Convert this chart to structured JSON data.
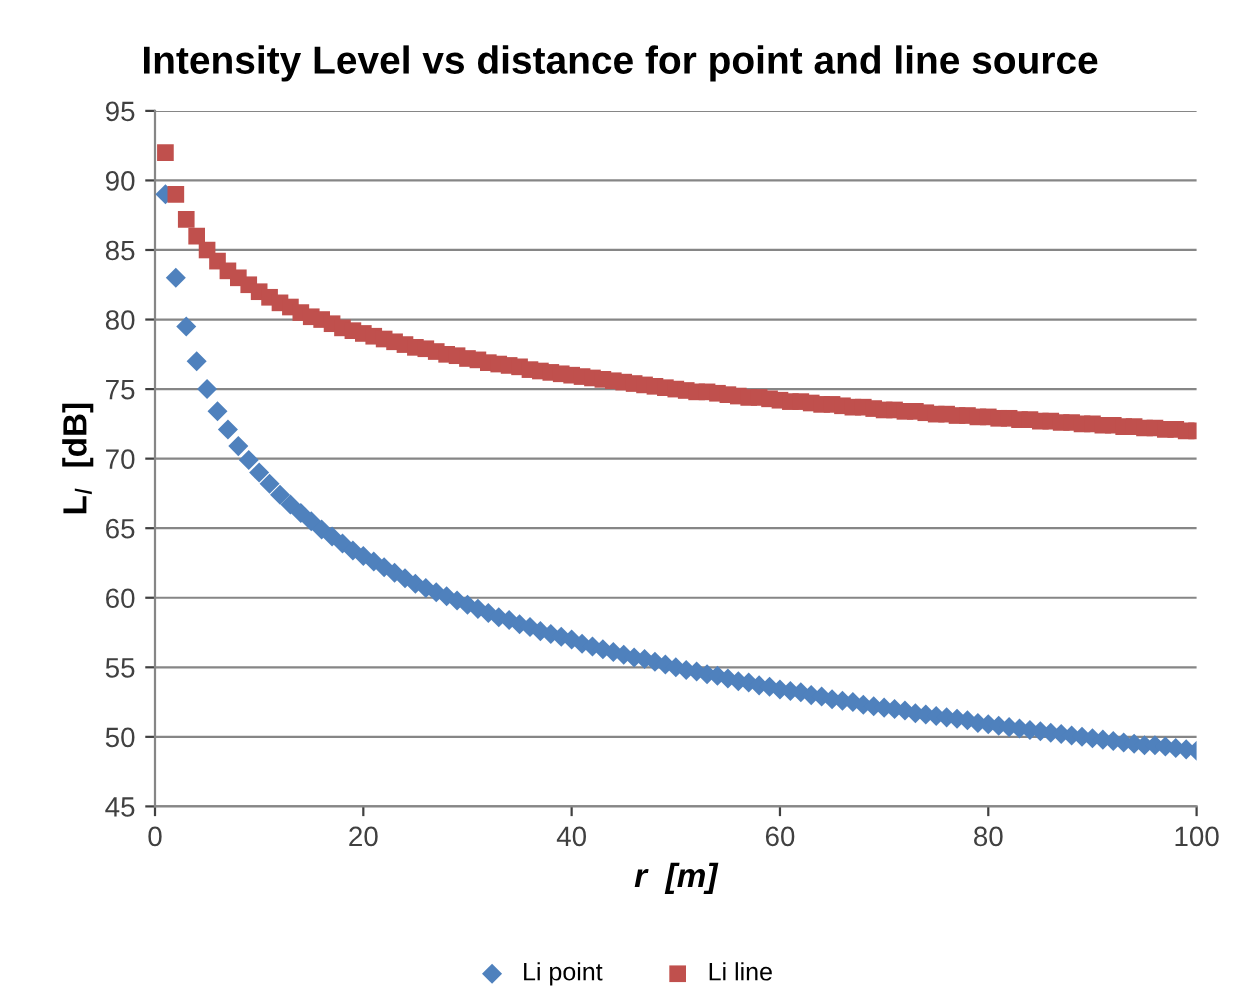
{
  "chart_data": {
    "type": "scatter",
    "title": "Intensity Level vs distance for point and line source",
    "xlabel": "r  [m]",
    "ylabel": "L$_{I}$  [dB]",
    "x": [
      1,
      2,
      3,
      4,
      5,
      6,
      7,
      8,
      9,
      10,
      11,
      12,
      13,
      14,
      15,
      16,
      17,
      18,
      19,
      20,
      21,
      22,
      23,
      24,
      25,
      26,
      27,
      28,
      29,
      30,
      31,
      32,
      33,
      34,
      35,
      36,
      37,
      38,
      39,
      40,
      41,
      42,
      43,
      44,
      45,
      46,
      47,
      48,
      49,
      50,
      51,
      52,
      53,
      54,
      55,
      56,
      57,
      58,
      59,
      60,
      61,
      62,
      63,
      64,
      65,
      66,
      67,
      68,
      69,
      70,
      71,
      72,
      73,
      74,
      75,
      76,
      77,
      78,
      79,
      80,
      81,
      82,
      83,
      84,
      85,
      86,
      87,
      88,
      89,
      90,
      91,
      92,
      93,
      94,
      95,
      96,
      97,
      98,
      99,
      100
    ],
    "series": [
      {
        "name": "Li point",
        "color": "#4f81bd",
        "marker": "diamond",
        "values": [
          89.0,
          83.0,
          79.5,
          77.0,
          75.0,
          73.4,
          72.1,
          70.9,
          69.9,
          69.0,
          68.2,
          67.4,
          66.7,
          66.1,
          65.5,
          64.9,
          64.4,
          63.9,
          63.4,
          63.0,
          62.6,
          62.2,
          61.8,
          61.4,
          61.0,
          60.7,
          60.4,
          60.1,
          59.8,
          59.5,
          59.2,
          58.9,
          58.6,
          58.4,
          58.1,
          57.9,
          57.6,
          57.4,
          57.2,
          57.0,
          56.7,
          56.5,
          56.3,
          56.1,
          55.9,
          55.7,
          55.6,
          55.4,
          55.2,
          55.0,
          54.8,
          54.7,
          54.5,
          54.4,
          54.2,
          54.0,
          53.9,
          53.7,
          53.6,
          53.4,
          53.3,
          53.2,
          53.0,
          52.9,
          52.7,
          52.6,
          52.5,
          52.3,
          52.2,
          52.1,
          52.0,
          51.9,
          51.7,
          51.6,
          51.5,
          51.4,
          51.3,
          51.2,
          51.0,
          50.9,
          50.8,
          50.7,
          50.6,
          50.5,
          50.4,
          50.3,
          50.2,
          50.1,
          50.0,
          49.9,
          49.8,
          49.7,
          49.6,
          49.5,
          49.4,
          49.4,
          49.3,
          49.2,
          49.1,
          49.0
        ]
      },
      {
        "name": "Li line",
        "color": "#c0504d",
        "marker": "square",
        "values": [
          92.0,
          89.0,
          87.2,
          86.0,
          85.0,
          84.2,
          83.5,
          83.0,
          82.5,
          82.0,
          81.6,
          81.2,
          80.9,
          80.5,
          80.2,
          80.0,
          79.7,
          79.4,
          79.2,
          79.0,
          78.8,
          78.6,
          78.4,
          78.2,
          78.0,
          77.9,
          77.7,
          77.5,
          77.4,
          77.2,
          77.1,
          76.9,
          76.8,
          76.7,
          76.6,
          76.4,
          76.3,
          76.2,
          76.1,
          76.0,
          75.9,
          75.8,
          75.7,
          75.6,
          75.5,
          75.4,
          75.3,
          75.2,
          75.1,
          75.0,
          74.9,
          74.8,
          74.8,
          74.7,
          74.6,
          74.5,
          74.4,
          74.4,
          74.3,
          74.2,
          74.1,
          74.1,
          74.0,
          73.9,
          73.9,
          73.8,
          73.7,
          73.7,
          73.6,
          73.5,
          73.5,
          73.4,
          73.4,
          73.3,
          73.2,
          73.2,
          73.1,
          73.1,
          73.0,
          73.0,
          72.9,
          72.9,
          72.8,
          72.8,
          72.7,
          72.7,
          72.6,
          72.6,
          72.5,
          72.5,
          72.4,
          72.4,
          72.3,
          72.3,
          72.2,
          72.2,
          72.1,
          72.1,
          72.0,
          72.0
        ]
      }
    ],
    "xlim": [
      0,
      100
    ],
    "xticks": [
      0,
      20,
      40,
      60,
      80,
      100
    ],
    "ylim": [
      45,
      95
    ],
    "yticks": [
      45,
      50,
      55,
      60,
      65,
      70,
      75,
      80,
      85,
      90,
      95
    ],
    "grid": "y",
    "legend": "bottom"
  }
}
